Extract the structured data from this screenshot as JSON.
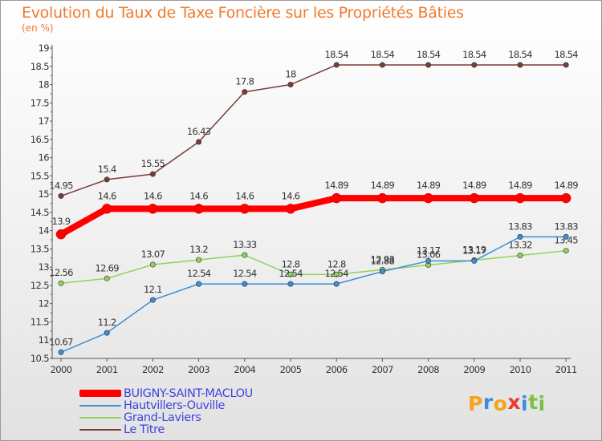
{
  "header": {
    "title": "Evolution du Taux de Taxe Foncière sur les Propriétés Bâties",
    "unit": "(en %)"
  },
  "colors": {
    "title": "#f07b2e",
    "axis": "#555555",
    "legend_text": "#3f44e0"
  },
  "brand": {
    "name": "Proxiti",
    "letters": [
      "P",
      "r",
      "o",
      "x",
      "i",
      "t",
      "i"
    ],
    "letter_colors": [
      "#f7a21b",
      "#3b8de0",
      "#f7a21b",
      "#e63b2e",
      "#3b8de0",
      "#7cc23e",
      "#7cc23e"
    ]
  },
  "chart_data": {
    "type": "line",
    "title": "Evolution du Taux de Taxe Foncière sur les Propriétés Bâties",
    "ylabel": "(en %)",
    "xlabel": "",
    "x": [
      "2000",
      "2001",
      "2002",
      "2003",
      "2004",
      "2005",
      "2006",
      "2007",
      "2008",
      "2009",
      "2010",
      "2011"
    ],
    "ylim": [
      10.5,
      19
    ],
    "yticks": [
      "10.5",
      "11",
      "11.5",
      "12",
      "12.5",
      "13",
      "13.5",
      "14",
      "14.5",
      "15",
      "15.5",
      "16",
      "16.5",
      "17",
      "17.5",
      "18",
      "18.5",
      "19"
    ],
    "grid": false,
    "legend_position": "bottom-left",
    "series": [
      {
        "name": "BUIGNY-SAINT-MACLOU",
        "color": "#ff0000",
        "values": [
          13.9,
          14.6,
          14.6,
          14.6,
          14.6,
          14.6,
          14.89,
          14.89,
          14.89,
          14.89,
          14.89,
          14.89
        ],
        "labels": [
          "13.9",
          "14.6",
          "14.6",
          "14.6",
          "14.6",
          "14.6",
          "14.89",
          "14.89",
          "14.89",
          "14.89",
          "14.89",
          "14.89"
        ]
      },
      {
        "name": "Hautvillers-Ouville",
        "color": "#3c8fd6",
        "values": [
          10.67,
          11.2,
          12.1,
          12.54,
          12.54,
          12.54,
          12.54,
          12.88,
          13.17,
          13.17,
          13.83,
          13.83
        ],
        "labels": [
          "10.67",
          "11.2",
          "12.1",
          "12.54",
          "12.54",
          "12.54",
          "12.54",
          "12.88",
          "13.17",
          "13.17",
          "13.83",
          "13.83"
        ]
      },
      {
        "name": "Grand-Laviers",
        "color": "#8fd35a",
        "values": [
          12.56,
          12.69,
          13.07,
          13.2,
          13.33,
          12.8,
          12.8,
          12.93,
          13.06,
          13.19,
          13.32,
          13.45
        ],
        "labels": [
          "12.56",
          "12.69",
          "13.07",
          "13.2",
          "13.33",
          "12.8",
          "12.8",
          "12.93",
          "13.06",
          "13.19",
          "13.32",
          "13.45"
        ]
      },
      {
        "name": "Le Titre",
        "color": "#7a3b3b",
        "values": [
          14.95,
          15.4,
          15.55,
          16.43,
          17.8,
          18,
          18.54,
          18.54,
          18.54,
          18.54,
          18.54,
          18.54
        ],
        "labels": [
          "14.95",
          "15.4",
          "15.55",
          "16.43",
          "17.8",
          "18",
          "18.54",
          "18.54",
          "18.54",
          "18.54",
          "18.54",
          "18.54"
        ]
      }
    ]
  }
}
